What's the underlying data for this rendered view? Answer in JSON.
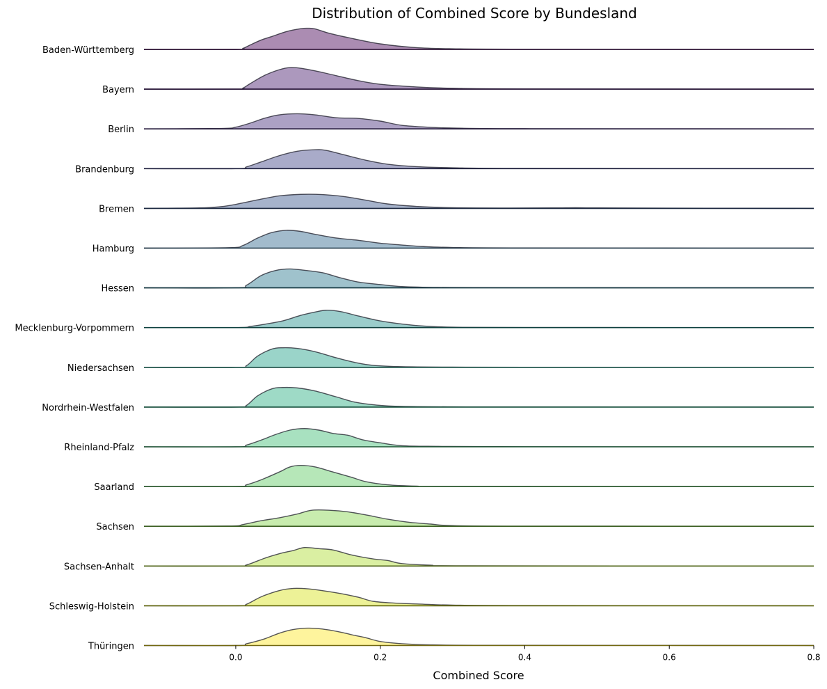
{
  "chart_data": {
    "type": "ridgeline",
    "title": "Distribution of Combined Score by Bundesland",
    "xlabel": "Combined Score",
    "ylabel": "",
    "xlim": [
      -0.127,
      0.8
    ],
    "xticks": [
      0.0,
      0.2,
      0.4,
      0.6,
      0.8
    ],
    "xtick_labels": [
      "0.0",
      "0.2",
      "0.4",
      "0.6",
      "0.8"
    ],
    "grid": false,
    "colormap": "viridis",
    "series": [
      {
        "name": "Baden-Württemberg",
        "color": "#440154",
        "curve": [
          [
            -0.127,
            0
          ],
          [
            0.0,
            0
          ],
          [
            0.01,
            0.05
          ],
          [
            0.02,
            0.2
          ],
          [
            0.035,
            0.42
          ],
          [
            0.05,
            0.58
          ],
          [
            0.07,
            0.8
          ],
          [
            0.09,
            0.93
          ],
          [
            0.1,
            0.95
          ],
          [
            0.11,
            0.92
          ],
          [
            0.13,
            0.72
          ],
          [
            0.16,
            0.5
          ],
          [
            0.2,
            0.25
          ],
          [
            0.25,
            0.08
          ],
          [
            0.3,
            0.03
          ],
          [
            0.4,
            0.01
          ],
          [
            0.8,
            0
          ]
        ]
      },
      {
        "name": "Bayern",
        "color": "#481a6c",
        "curve": [
          [
            -0.127,
            0
          ],
          [
            0.0,
            0
          ],
          [
            0.01,
            0.05
          ],
          [
            0.02,
            0.25
          ],
          [
            0.04,
            0.62
          ],
          [
            0.06,
            0.87
          ],
          [
            0.075,
            0.97
          ],
          [
            0.09,
            0.94
          ],
          [
            0.11,
            0.82
          ],
          [
            0.14,
            0.6
          ],
          [
            0.17,
            0.38
          ],
          [
            0.2,
            0.22
          ],
          [
            0.25,
            0.1
          ],
          [
            0.3,
            0.04
          ],
          [
            0.4,
            0.01
          ],
          [
            0.8,
            0
          ]
        ]
      },
      {
        "name": "Berlin",
        "color": "#472f7d",
        "curve": [
          [
            -0.127,
            0
          ],
          [
            -0.02,
            0.02
          ],
          [
            0.0,
            0.08
          ],
          [
            0.02,
            0.26
          ],
          [
            0.04,
            0.48
          ],
          [
            0.06,
            0.63
          ],
          [
            0.085,
            0.68
          ],
          [
            0.11,
            0.63
          ],
          [
            0.14,
            0.5
          ],
          [
            0.17,
            0.47
          ],
          [
            0.2,
            0.35
          ],
          [
            0.23,
            0.16
          ],
          [
            0.27,
            0.07
          ],
          [
            0.3,
            0.04
          ],
          [
            0.4,
            0.01
          ],
          [
            0.8,
            0
          ]
        ]
      },
      {
        "name": "Brandenburg",
        "color": "#414487",
        "curve": [
          [
            -0.127,
            0
          ],
          [
            0.0,
            0
          ],
          [
            0.015,
            0.08
          ],
          [
            0.035,
            0.3
          ],
          [
            0.06,
            0.58
          ],
          [
            0.085,
            0.78
          ],
          [
            0.11,
            0.85
          ],
          [
            0.125,
            0.82
          ],
          [
            0.15,
            0.62
          ],
          [
            0.18,
            0.38
          ],
          [
            0.21,
            0.2
          ],
          [
            0.25,
            0.09
          ],
          [
            0.3,
            0.04
          ],
          [
            0.4,
            0.01
          ],
          [
            0.8,
            0
          ]
        ]
      },
      {
        "name": "Bremen",
        "color": "#39568c",
        "curve": [
          [
            -0.127,
            0
          ],
          [
            -0.05,
            0.02
          ],
          [
            -0.02,
            0.08
          ],
          [
            0.0,
            0.18
          ],
          [
            0.03,
            0.38
          ],
          [
            0.06,
            0.56
          ],
          [
            0.09,
            0.63
          ],
          [
            0.12,
            0.62
          ],
          [
            0.15,
            0.53
          ],
          [
            0.18,
            0.37
          ],
          [
            0.21,
            0.2
          ],
          [
            0.25,
            0.09
          ],
          [
            0.3,
            0.03
          ],
          [
            0.38,
            0.015
          ],
          [
            0.44,
            0.02
          ],
          [
            0.47,
            0.03
          ],
          [
            0.5,
            0.02
          ],
          [
            0.6,
            0.01
          ],
          [
            0.8,
            0
          ]
        ]
      },
      {
        "name": "Hamburg",
        "color": "#31688e",
        "curve": [
          [
            -0.127,
            0
          ],
          [
            -0.01,
            0.02
          ],
          [
            0.01,
            0.12
          ],
          [
            0.03,
            0.45
          ],
          [
            0.05,
            0.7
          ],
          [
            0.07,
            0.8
          ],
          [
            0.09,
            0.75
          ],
          [
            0.11,
            0.62
          ],
          [
            0.14,
            0.45
          ],
          [
            0.17,
            0.35
          ],
          [
            0.2,
            0.22
          ],
          [
            0.23,
            0.14
          ],
          [
            0.26,
            0.07
          ],
          [
            0.3,
            0.03
          ],
          [
            0.4,
            0.01
          ],
          [
            0.8,
            0
          ]
        ]
      },
      {
        "name": "Hessen",
        "color": "#2a788e",
        "curve": [
          [
            -0.127,
            0
          ],
          [
            0.0,
            0
          ],
          [
            0.015,
            0.12
          ],
          [
            0.035,
            0.55
          ],
          [
            0.055,
            0.78
          ],
          [
            0.075,
            0.85
          ],
          [
            0.095,
            0.79
          ],
          [
            0.12,
            0.68
          ],
          [
            0.145,
            0.45
          ],
          [
            0.17,
            0.26
          ],
          [
            0.2,
            0.15
          ],
          [
            0.23,
            0.06
          ],
          [
            0.28,
            0.02
          ],
          [
            0.4,
            0.005
          ],
          [
            0.8,
            0
          ]
        ]
      },
      {
        "name": "Mecklenburg-Vorpommern",
        "color": "#21918c",
        "curve": [
          [
            -0.127,
            0
          ],
          [
            0.0,
            0
          ],
          [
            0.02,
            0.05
          ],
          [
            0.04,
            0.15
          ],
          [
            0.065,
            0.3
          ],
          [
            0.09,
            0.55
          ],
          [
            0.11,
            0.7
          ],
          [
            0.125,
            0.78
          ],
          [
            0.145,
            0.72
          ],
          [
            0.17,
            0.52
          ],
          [
            0.2,
            0.3
          ],
          [
            0.23,
            0.16
          ],
          [
            0.26,
            0.07
          ],
          [
            0.3,
            0.02
          ],
          [
            0.4,
            0.005
          ],
          [
            0.8,
            0
          ]
        ]
      },
      {
        "name": "Niedersachsen",
        "color": "#1fa088",
        "curve": [
          [
            -0.127,
            0
          ],
          [
            0.0,
            0
          ],
          [
            0.015,
            0.08
          ],
          [
            0.03,
            0.5
          ],
          [
            0.05,
            0.82
          ],
          [
            0.065,
            0.88
          ],
          [
            0.085,
            0.85
          ],
          [
            0.11,
            0.7
          ],
          [
            0.14,
            0.42
          ],
          [
            0.165,
            0.22
          ],
          [
            0.19,
            0.09
          ],
          [
            0.23,
            0.03
          ],
          [
            0.3,
            0.01
          ],
          [
            0.4,
            0.005
          ],
          [
            0.8,
            0
          ]
        ]
      },
      {
        "name": "Nordrhein-Westfalen",
        "color": "#28ae80",
        "curve": [
          [
            -0.127,
            0
          ],
          [
            0.0,
            0
          ],
          [
            0.015,
            0.08
          ],
          [
            0.03,
            0.5
          ],
          [
            0.05,
            0.82
          ],
          [
            0.065,
            0.88
          ],
          [
            0.085,
            0.86
          ],
          [
            0.11,
            0.72
          ],
          [
            0.14,
            0.45
          ],
          [
            0.165,
            0.22
          ],
          [
            0.195,
            0.09
          ],
          [
            0.23,
            0.03
          ],
          [
            0.3,
            0.01
          ],
          [
            0.4,
            0.005
          ],
          [
            0.8,
            0
          ]
        ]
      },
      {
        "name": "Rheinland-Pfalz",
        "color": "#3fbc73",
        "curve": [
          [
            -0.127,
            0
          ],
          [
            0.0,
            0
          ],
          [
            0.015,
            0.08
          ],
          [
            0.035,
            0.3
          ],
          [
            0.055,
            0.55
          ],
          [
            0.075,
            0.75
          ],
          [
            0.095,
            0.82
          ],
          [
            0.115,
            0.75
          ],
          [
            0.135,
            0.6
          ],
          [
            0.155,
            0.52
          ],
          [
            0.175,
            0.32
          ],
          [
            0.2,
            0.18
          ],
          [
            0.23,
            0.05
          ],
          [
            0.28,
            0.02
          ],
          [
            0.4,
            0.005
          ],
          [
            0.8,
            0
          ]
        ]
      },
      {
        "name": "Saarland",
        "color": "#5ec962",
        "curve": [
          [
            -0.127,
            0
          ],
          [
            0.0,
            0
          ],
          [
            0.015,
            0.08
          ],
          [
            0.035,
            0.3
          ],
          [
            0.06,
            0.65
          ],
          [
            0.075,
            0.88
          ],
          [
            0.09,
            0.95
          ],
          [
            0.11,
            0.88
          ],
          [
            0.135,
            0.65
          ],
          [
            0.16,
            0.42
          ],
          [
            0.18,
            0.22
          ],
          [
            0.21,
            0.08
          ],
          [
            0.25,
            0.02
          ],
          [
            0.3,
            0.005
          ],
          [
            0.8,
            0
          ]
        ]
      },
      {
        "name": "Sachsen",
        "color": "#84d44b",
        "curve": [
          [
            -0.127,
            0
          ],
          [
            -0.01,
            0.01
          ],
          [
            0.01,
            0.08
          ],
          [
            0.035,
            0.25
          ],
          [
            0.06,
            0.38
          ],
          [
            0.085,
            0.55
          ],
          [
            0.105,
            0.72
          ],
          [
            0.13,
            0.72
          ],
          [
            0.155,
            0.65
          ],
          [
            0.185,
            0.48
          ],
          [
            0.21,
            0.32
          ],
          [
            0.24,
            0.18
          ],
          [
            0.27,
            0.1
          ],
          [
            0.3,
            0.03
          ],
          [
            0.4,
            0.005
          ],
          [
            0.8,
            0
          ]
        ]
      },
      {
        "name": "Sachsen-Anhalt",
        "color": "#addc30",
        "curve": [
          [
            -0.127,
            0
          ],
          [
            0.0,
            0
          ],
          [
            0.015,
            0.05
          ],
          [
            0.04,
            0.35
          ],
          [
            0.06,
            0.55
          ],
          [
            0.08,
            0.7
          ],
          [
            0.095,
            0.83
          ],
          [
            0.115,
            0.78
          ],
          [
            0.135,
            0.72
          ],
          [
            0.16,
            0.5
          ],
          [
            0.19,
            0.32
          ],
          [
            0.21,
            0.25
          ],
          [
            0.23,
            0.11
          ],
          [
            0.27,
            0.04
          ],
          [
            0.32,
            0.01
          ],
          [
            0.8,
            0
          ]
        ]
      },
      {
        "name": "Schleswig-Holstein",
        "color": "#d8e219",
        "curve": [
          [
            -0.127,
            0
          ],
          [
            0.0,
            0
          ],
          [
            0.015,
            0.07
          ],
          [
            0.035,
            0.4
          ],
          [
            0.06,
            0.68
          ],
          [
            0.08,
            0.78
          ],
          [
            0.1,
            0.76
          ],
          [
            0.12,
            0.68
          ],
          [
            0.145,
            0.55
          ],
          [
            0.17,
            0.38
          ],
          [
            0.19,
            0.2
          ],
          [
            0.22,
            0.12
          ],
          [
            0.26,
            0.07
          ],
          [
            0.3,
            0.03
          ],
          [
            0.4,
            0.01
          ],
          [
            0.8,
            0
          ]
        ]
      },
      {
        "name": "Thüringen",
        "color": "#fde725",
        "curve": [
          [
            -0.127,
            0
          ],
          [
            0.0,
            0
          ],
          [
            0.015,
            0.08
          ],
          [
            0.04,
            0.3
          ],
          [
            0.06,
            0.55
          ],
          [
            0.08,
            0.72
          ],
          [
            0.1,
            0.78
          ],
          [
            0.12,
            0.74
          ],
          [
            0.145,
            0.6
          ],
          [
            0.165,
            0.45
          ],
          [
            0.18,
            0.35
          ],
          [
            0.2,
            0.18
          ],
          [
            0.23,
            0.08
          ],
          [
            0.27,
            0.03
          ],
          [
            0.35,
            0.01
          ],
          [
            0.6,
            0.005
          ],
          [
            0.8,
            0
          ]
        ]
      }
    ]
  }
}
